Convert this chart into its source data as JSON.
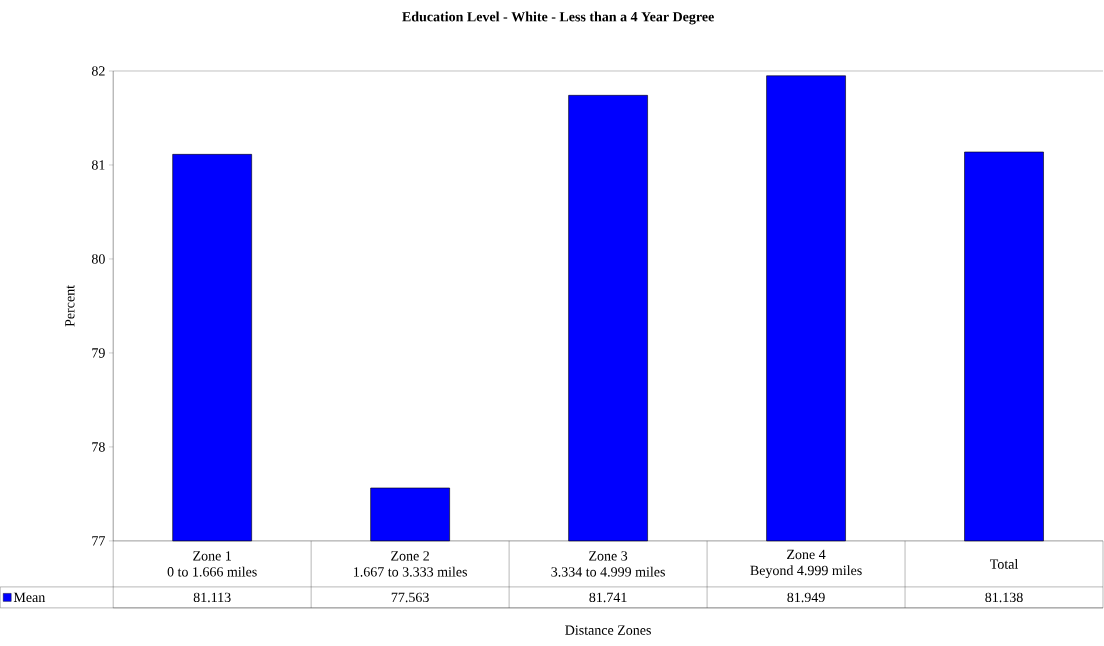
{
  "chart_data": {
    "type": "bar",
    "title": "Education Level - White - Less than a 4 Year Degree",
    "xlabel": "Distance Zones",
    "ylabel": "Percent",
    "categories": [
      "Zone 1\n0 to 1.666 miles",
      "Zone 2\n1.667 to 3.333 miles",
      "Zone 3\n3.334 to 4.999 miles",
      "Zone 4\nBeyond 4.999 miles",
      "Total"
    ],
    "series": [
      {
        "name": "Mean",
        "color": "#0000ff",
        "values": [
          81.113,
          77.563,
          81.741,
          81.949,
          81.138
        ]
      }
    ],
    "ylim": [
      77,
      82
    ],
    "yticks": [
      77,
      78,
      79,
      80,
      81,
      82
    ],
    "data_labels": true,
    "legend": "bottom left",
    "grid": false
  }
}
